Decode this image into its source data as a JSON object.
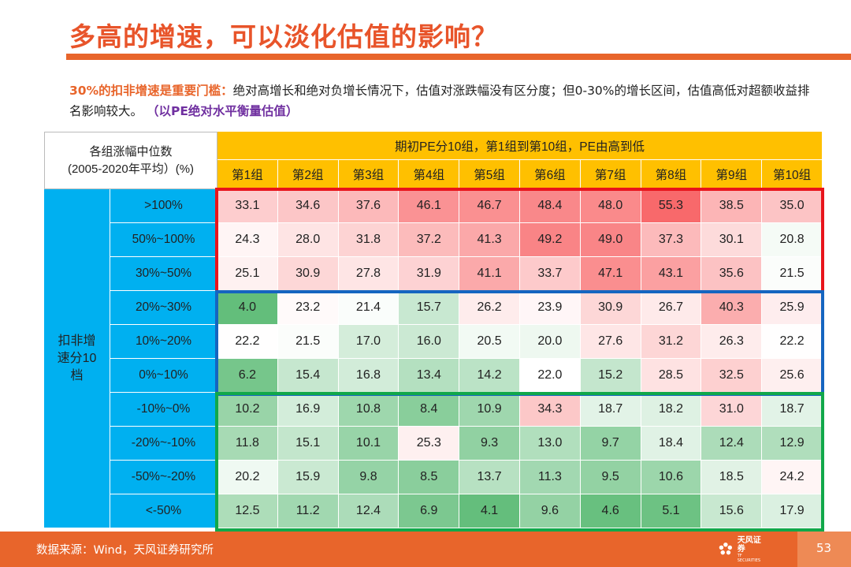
{
  "title": "多高的增速，可以淡化估值的影响？",
  "description": {
    "highlight": "30%的扣非增速是重要门槛：",
    "text": "绝对高增长和绝对负增长情况下，估值对涨跌幅没有区分度；但0-30%的增长区间，估值高低对超额收益排名影响较大。",
    "note": "（以PE绝对水平衡量估值）"
  },
  "table": {
    "corner_line1": "各组涨幅中位数",
    "corner_line2": "(2005-2020年平均）(%)",
    "top_header": "期初PE分10组，第1组到第10组，PE由高到低",
    "side_header": "扣非增速分10档",
    "groups": [
      "第1组",
      "第2组",
      "第3组",
      "第4组",
      "第5组",
      "第6组",
      "第7组",
      "第8组",
      "第9组",
      "第10组"
    ],
    "rows": [
      {
        "label": ">100%",
        "values": [
          33.1,
          34.6,
          37.6,
          46.1,
          46.7,
          48.4,
          48.0,
          55.3,
          38.5,
          35.0
        ]
      },
      {
        "label": "50%~100%",
        "values": [
          24.3,
          28.0,
          31.8,
          37.2,
          41.3,
          49.2,
          49.0,
          37.3,
          30.1,
          20.8
        ]
      },
      {
        "label": "30%~50%",
        "values": [
          25.1,
          30.9,
          27.8,
          31.9,
          41.1,
          33.7,
          47.1,
          43.1,
          35.6,
          21.5
        ]
      },
      {
        "label": "20%~30%",
        "values": [
          4.0,
          23.2,
          21.4,
          15.7,
          26.2,
          23.9,
          30.9,
          26.7,
          40.3,
          25.9
        ]
      },
      {
        "label": "10%~20%",
        "values": [
          22.2,
          21.5,
          17.0,
          16.0,
          20.5,
          20.0,
          27.6,
          31.2,
          26.3,
          22.2
        ]
      },
      {
        "label": "0%~10%",
        "values": [
          6.2,
          15.4,
          16.8,
          13.4,
          14.2,
          22.0,
          15.2,
          28.5,
          32.5,
          25.6
        ]
      },
      {
        "label": "-10%~0%",
        "values": [
          10.2,
          16.9,
          10.8,
          8.4,
          10.9,
          34.3,
          18.7,
          18.2,
          31.0,
          18.7
        ]
      },
      {
        "label": "-20%~-10%",
        "values": [
          11.8,
          15.1,
          10.1,
          25.3,
          9.3,
          13.0,
          9.7,
          18.4,
          12.4,
          12.9
        ]
      },
      {
        "label": "-50%~-20%",
        "values": [
          20.2,
          15.9,
          9.8,
          8.5,
          13.7,
          11.3,
          9.5,
          10.6,
          18.5,
          24.2
        ]
      },
      {
        "label": "<-50%",
        "values": [
          12.5,
          11.2,
          12.4,
          6.9,
          4.1,
          9.6,
          4.6,
          5.1,
          15.6,
          17.9
        ]
      }
    ],
    "colors": {
      "header": "#FFC000",
      "side": "#00B0F0",
      "high": "#F8696B",
      "mid": "#FFFFFF",
      "low": "#63BE7B",
      "box_high": "#E8141B",
      "box_mid": "#1565C0",
      "box_low": "#11A84A"
    }
  },
  "footer": {
    "source": "数据来源：Wind，天风证券研究所",
    "logo_text": "天风证券",
    "logo_sub": "TF SECURITIES",
    "page_number": "53"
  }
}
